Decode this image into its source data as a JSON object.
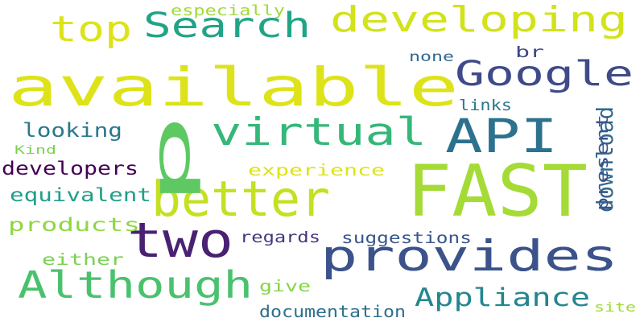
{
  "words": [
    {
      "text": "available",
      "color": "#dde318",
      "vertical": false
    },
    {
      "text": "FAST",
      "color": "#a5db36",
      "vertical": false
    },
    {
      "text": "better",
      "color": "#c5e021",
      "vertical": false
    },
    {
      "text": "provides",
      "color": "#3b528b",
      "vertical": false
    },
    {
      "text": "Although",
      "color": "#4ac16d",
      "vertical": false
    },
    {
      "text": "two",
      "color": "#482173",
      "vertical": false
    },
    {
      "text": "p",
      "color": "#5ec962",
      "vertical": true
    },
    {
      "text": "developing",
      "color": "#d2e21b",
      "vertical": false
    },
    {
      "text": "virtual",
      "color": "#35b779",
      "vertical": false
    },
    {
      "text": "Google",
      "color": "#3e4a89",
      "vertical": false
    },
    {
      "text": "API",
      "color": "#2c728e",
      "vertical": false
    },
    {
      "text": "top",
      "color": "#dde318",
      "vertical": false
    },
    {
      "text": "Search",
      "color": "#20a486",
      "vertical": false
    },
    {
      "text": "Appliance",
      "color": "#24868e",
      "vertical": false
    },
    {
      "text": "download",
      "color": "#31688e",
      "vertical": true
    },
    {
      "text": "provides",
      "color": "#3b528b",
      "vertical": false
    },
    {
      "text": "looking",
      "color": "#2a788e",
      "vertical": false
    },
    {
      "text": "developers",
      "color": "#440154",
      "vertical": false
    },
    {
      "text": "experience",
      "color": "#dde318",
      "vertical": false
    },
    {
      "text": "equivalent",
      "color": "#1f9e89",
      "vertical": false
    },
    {
      "text": "products",
      "color": "#90d743",
      "vertical": false
    },
    {
      "text": "either",
      "color": "#7ad151",
      "vertical": false
    },
    {
      "text": "give",
      "color": "#86d549",
      "vertical": false
    },
    {
      "text": "regards",
      "color": "#46337e",
      "vertical": false
    },
    {
      "text": "suggestions",
      "color": "#39568c",
      "vertical": false
    },
    {
      "text": "documentation",
      "color": "#2d708e",
      "vertical": false
    },
    {
      "text": "present",
      "color": "#3b528b",
      "vertical": true
    },
    {
      "text": "links",
      "color": "#2a788e",
      "vertical": false
    },
    {
      "text": "none",
      "color": "#31688e",
      "vertical": false
    },
    {
      "text": "br",
      "color": "#3e4989",
      "vertical": false
    },
    {
      "text": "especially",
      "color": "#a0da39",
      "vertical": false
    },
    {
      "text": "Kind",
      "color": "#7ad151",
      "vertical": false
    },
    {
      "text": "site",
      "color": "#a0da39",
      "vertical": false
    }
  ]
}
